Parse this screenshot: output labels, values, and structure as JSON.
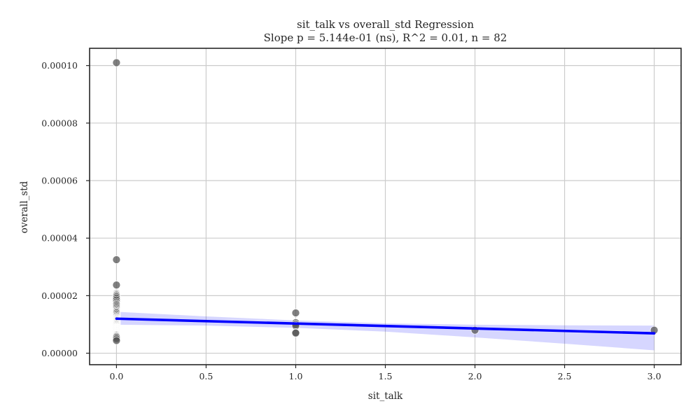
{
  "chart_data": {
    "type": "scatter",
    "title": "sit_talk vs overall_std Regression",
    "subtitle": "Slope p = 5.144e-01 (ns), R^2 = 0.01, n = 82",
    "xlabel": "sit_talk",
    "ylabel": "overall_std",
    "xlim": [
      -0.15,
      3.15
    ],
    "ylim": [
      -4e-06,
      0.000106
    ],
    "xticks": [
      0.0,
      0.5,
      1.0,
      1.5,
      2.0,
      2.5,
      3.0
    ],
    "xtick_labels": [
      "0.0",
      "0.5",
      "1.0",
      "1.5",
      "2.0",
      "2.5",
      "3.0"
    ],
    "yticks": [
      0.0,
      2e-05,
      4e-05,
      6e-05,
      8e-05,
      0.0001
    ],
    "ytick_labels": [
      "0.00000",
      "0.00002",
      "0.00004",
      "0.00006",
      "0.00008",
      "0.00010"
    ],
    "grid": true,
    "points": {
      "color": "#555555",
      "x": [
        0,
        0,
        0,
        0,
        0,
        0,
        0,
        0,
        0,
        0,
        0,
        0,
        0,
        0,
        0,
        0,
        0,
        0,
        0,
        0,
        0,
        0,
        0,
        0,
        0,
        0,
        0,
        0,
        0,
        0,
        0,
        0,
        0,
        0,
        0,
        0,
        0,
        0,
        0,
        0,
        0,
        0,
        0,
        0,
        0,
        0,
        0,
        0,
        0,
        0,
        0,
        0,
        0,
        0,
        0,
        0,
        0,
        0,
        0,
        0,
        0,
        0,
        0,
        0,
        0,
        0,
        0,
        0,
        0,
        0,
        0,
        0,
        0,
        0,
        1,
        1,
        1,
        1,
        1,
        1,
        2,
        3
      ],
      "y": [
        0.000101,
        3.25e-05,
        2.37e-05,
        2.08e-05,
        2.05e-05,
        2.03e-05,
        2e-05,
        1.96e-05,
        1.91e-05,
        1.85e-05,
        1.78e-05,
        1.72e-05,
        1.68e-05,
        1.63e-05,
        1.58e-05,
        1.53e-05,
        1.49e-05,
        1.46e-05,
        1.43e-05,
        1.4e-05,
        1.36e-05,
        1.32e-05,
        1.29e-05,
        1.26e-05,
        1.23e-05,
        1.21e-05,
        1.19e-05,
        1.17e-05,
        1.15e-05,
        1.13e-05,
        1.11e-05,
        1.09e-05,
        1.07e-05,
        1.05e-05,
        1.03e-05,
        1.01e-05,
        9.9e-06,
        9.7e-06,
        9.5e-06,
        9.3e-06,
        9.1e-06,
        9e-06,
        8.9e-06,
        8.8e-06,
        8.7e-06,
        8.6e-06,
        8.5e-06,
        8.4e-06,
        8.3e-06,
        8.2e-06,
        8.1e-06,
        8e-06,
        7.9e-06,
        7.8e-06,
        7.7e-06,
        7.6e-06,
        7.5e-06,
        7.4e-06,
        7.3e-06,
        7.2e-06,
        7.1e-06,
        7e-06,
        6.9e-06,
        6.8e-06,
        6.7e-06,
        6.6e-06,
        6.5e-06,
        6.4e-06,
        6.2e-06,
        6e-06,
        5.8e-06,
        5.5e-06,
        5e-06,
        4.4e-06,
        1.4e-05,
        1.06e-05,
        1e-05,
        9.5e-06,
        7.2e-06,
        7e-06,
        8e-06,
        8e-06
      ]
    },
    "regression": {
      "color": "#0000ff",
      "x_start": 0.0,
      "x_end": 3.0,
      "y_start": 1.2e-05,
      "y_end": 6.9e-06,
      "band": {
        "color": "#0000ff",
        "opacity": 0.16,
        "x": [
          0.0,
          0.5,
          1.0,
          1.5,
          2.0,
          2.5,
          3.0
        ],
        "lower": [
          9.9e-06,
          9.6e-06,
          8.8e-06,
          7.5e-06,
          5.5e-06,
          3.3e-06,
          1e-06
        ],
        "upper": [
          1.44e-05,
          1.28e-05,
          1.14e-05,
          1.04e-05,
          9.9e-06,
          9.7e-06,
          9.6e-06
        ]
      }
    }
  }
}
